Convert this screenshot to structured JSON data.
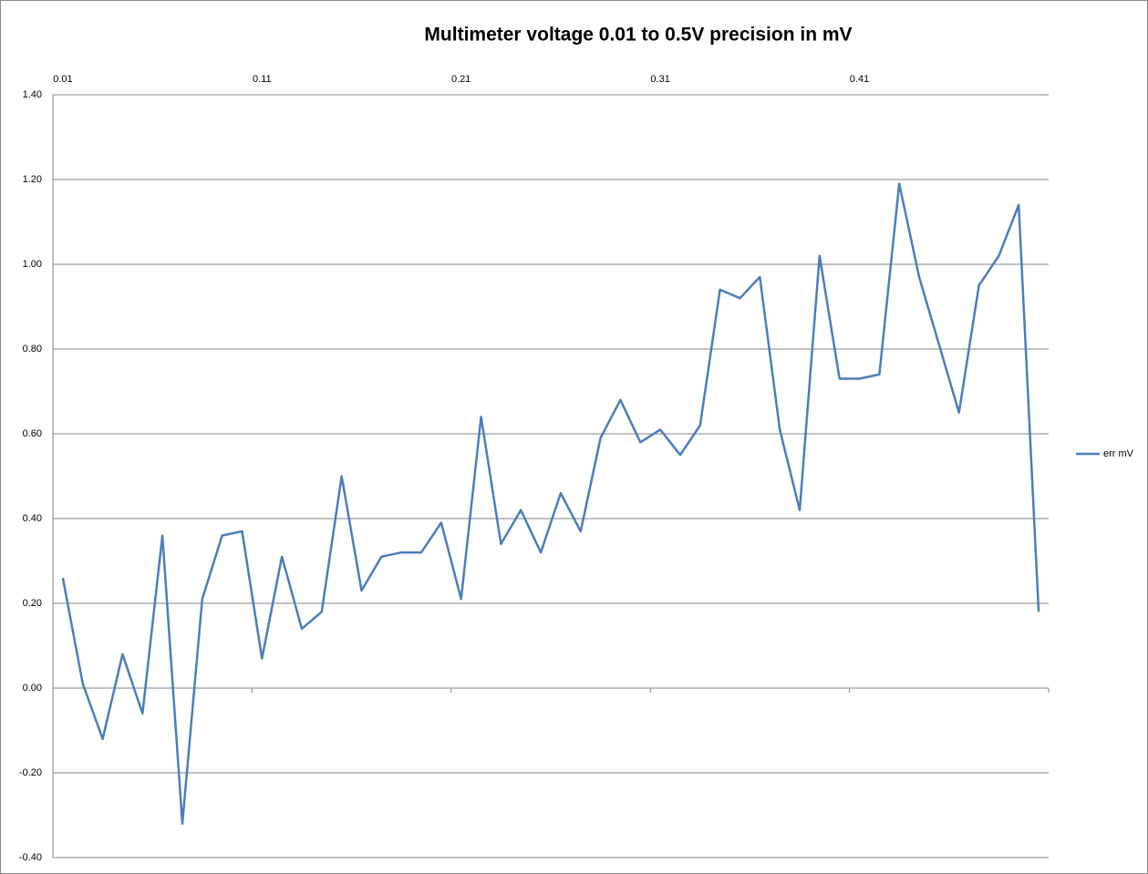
{
  "chart_data": {
    "type": "line",
    "title": "Multimeter voltage 0.01 to 0.5V precision in mV",
    "categories": [
      "0.01",
      null,
      null,
      null,
      null,
      null,
      null,
      null,
      null,
      null,
      "0.11",
      null,
      null,
      null,
      null,
      null,
      null,
      null,
      null,
      null,
      "0.21",
      null,
      null,
      null,
      null,
      null,
      null,
      null,
      null,
      null,
      "0.31",
      null,
      null,
      null,
      null,
      null,
      null,
      null,
      null,
      null,
      "0.41",
      null,
      null,
      null,
      null,
      null,
      null,
      null,
      null,
      null
    ],
    "series": [
      {
        "name": "err mV",
        "color": "#4a7ebb",
        "values": [
          0.26,
          0.01,
          -0.12,
          0.08,
          -0.06,
          0.36,
          -0.32,
          0.21,
          0.36,
          0.37,
          0.07,
          0.31,
          0.14,
          0.18,
          0.5,
          0.23,
          0.31,
          0.32,
          0.32,
          0.39,
          0.21,
          0.64,
          0.34,
          0.42,
          0.32,
          0.46,
          0.37,
          0.59,
          0.68,
          0.58,
          0.61,
          0.55,
          0.62,
          0.94,
          0.92,
          0.97,
          0.61,
          0.42,
          1.02,
          0.73,
          0.73,
          0.74,
          1.19,
          0.97,
          0.81,
          0.65,
          0.95,
          1.02,
          1.14,
          0.18
        ]
      }
    ],
    "ylim": [
      -0.4,
      1.4
    ],
    "yticks": [
      {
        "value": -0.4,
        "label": "-0.40"
      },
      {
        "value": -0.2,
        "label": "-0.20"
      },
      {
        "value": 0,
        "label": "0.00"
      },
      {
        "value": 0.2,
        "label": "0.20"
      },
      {
        "value": 0.4,
        "label": "0.40"
      },
      {
        "value": 0.6,
        "label": "0.60"
      },
      {
        "value": 0.8,
        "label": "0.80"
      },
      {
        "value": 1,
        "label": "1.00"
      },
      {
        "value": 1.2,
        "label": "1.20"
      },
      {
        "value": 1.4,
        "label": "1.40"
      }
    ],
    "grid": true,
    "legend": "right"
  }
}
